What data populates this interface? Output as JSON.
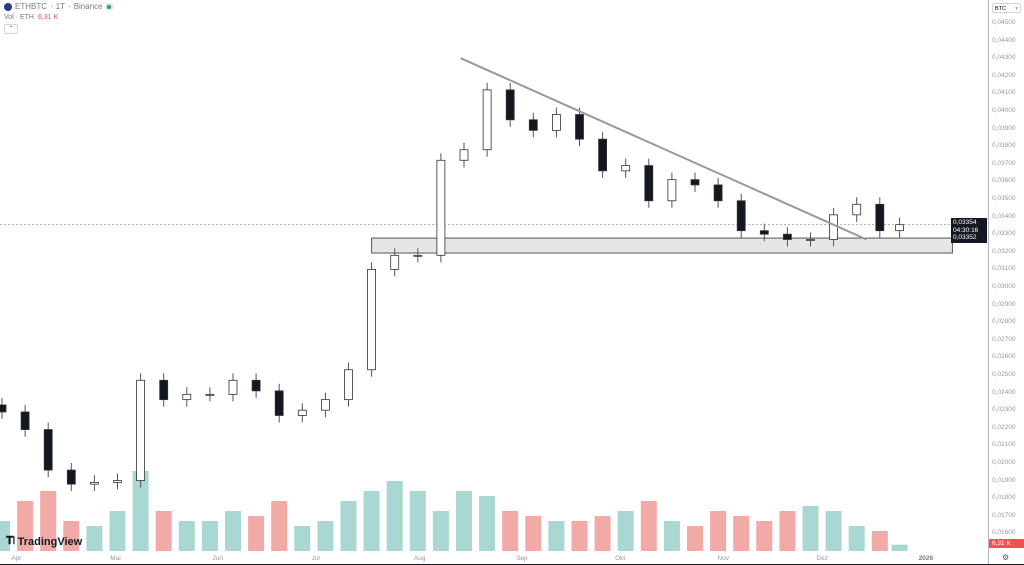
{
  "header": {
    "symbol": "ETHBTC",
    "interval": "1T",
    "exchange": "Binance",
    "separator": "·",
    "market_status_color": "#26a17b",
    "volume_label": "Vol · ETH",
    "volume_value": "6,31 K"
  },
  "branding": {
    "logo_text": "TradingView"
  },
  "axis": {
    "currency": "BTC",
    "last_price": "0,03354",
    "countdown": "04:30:16",
    "bid_price": "0,03352",
    "volume_badge": "6,31 K",
    "settings_icon": "gear-icon"
  },
  "colors": {
    "up_volume": "#a8d8d1",
    "down_volume": "#f2aaa6",
    "up_candle": "#ffffff",
    "down_candle": "#131722",
    "trendline": "#9598a1",
    "zone_fill": "#e6e6e6"
  },
  "chart_data": {
    "type": "candlestick",
    "xlabels": [
      "Apr",
      "Mai",
      "Jun",
      "Jul",
      "Aug",
      "Sep",
      "Okt",
      "Nov",
      "Dez",
      "2026"
    ],
    "ylabels": [
      "0,04500",
      "0,04400",
      "0,04300",
      "0,04200",
      "0,04100",
      "0,04000",
      "0,03900",
      "0,03800",
      "0,03700",
      "0,03600",
      "0,03500",
      "0,03400",
      "0,03300",
      "0,03200",
      "0,03100",
      "0,03000",
      "0,02900",
      "0,02800",
      "0,02700",
      "0,02600",
      "0,02500",
      "0,02400",
      "0,02300",
      "0,02200",
      "0,02100",
      "0,02000",
      "0,01900",
      "0,01800",
      "0,01700",
      "0,01600"
    ],
    "ylim": [
      0.0155,
      0.0458
    ],
    "dates": [
      "2025-03-28",
      "2025-04-04",
      "2025-04-11",
      "2025-04-18",
      "2025-04-25",
      "2025-05-02",
      "2025-05-09",
      "2025-05-16",
      "2025-05-23",
      "2025-05-30",
      "2025-06-06",
      "2025-06-13",
      "2025-06-20",
      "2025-06-27",
      "2025-07-04",
      "2025-07-11",
      "2025-07-18",
      "2025-07-25",
      "2025-08-01",
      "2025-08-08",
      "2025-08-15",
      "2025-08-22",
      "2025-08-29",
      "2025-09-05",
      "2025-09-12",
      "2025-09-19",
      "2025-09-26",
      "2025-10-03",
      "2025-10-10",
      "2025-10-17",
      "2025-10-24",
      "2025-10-31",
      "2025-11-07",
      "2025-11-14",
      "2025-11-21",
      "2025-11-28",
      "2025-12-05",
      "2025-12-12",
      "2025-12-19",
      "2025-12-25"
    ],
    "close": [
      0.0229,
      0.0219,
      0.0196,
      0.0188,
      0.0189,
      0.019,
      0.0247,
      0.0236,
      0.0239,
      0.0239,
      0.0247,
      0.0241,
      0.0227,
      0.023,
      0.0236,
      0.0253,
      0.031,
      0.0318,
      0.0318,
      0.0372,
      0.0378,
      0.0412,
      0.0395,
      0.0389,
      0.0398,
      0.0384,
      0.0366,
      0.0369,
      0.0349,
      0.0361,
      0.0358,
      0.0349,
      0.0332,
      0.033,
      0.0327,
      0.0327,
      0.0341,
      0.0347,
      0.0332,
      0.03354
    ],
    "volume_k": [
      30,
      50,
      60,
      30,
      25,
      40,
      80,
      40,
      30,
      30,
      40,
      35,
      50,
      25,
      30,
      50,
      60,
      70,
      60,
      40,
      60,
      55,
      40,
      35,
      30,
      30,
      35,
      40,
      50,
      30,
      25,
      40,
      35,
      30,
      40,
      45,
      40,
      25,
      20,
      6.31
    ],
    "last_price": 0.03354,
    "trendline": {
      "from": {
        "date": "2025-08-14",
        "price": 0.043
      },
      "to": {
        "date": "2025-12-15",
        "price": 0.0327
      }
    },
    "support_zone": {
      "from_date": "2025-07-18",
      "to_date": "2026-01-10",
      "low": 0.03193,
      "high": 0.03278
    },
    "grid": false
  }
}
